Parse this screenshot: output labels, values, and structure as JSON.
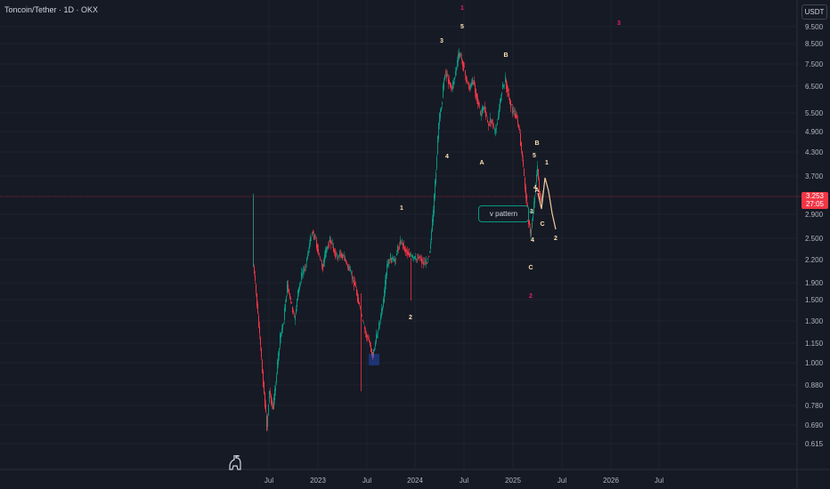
{
  "header": {
    "title": "Toncoin/Tether · 1D · OKX",
    "currency_button": "USDT"
  },
  "price_tag": {
    "price": "3.253",
    "countdown": "27:05"
  },
  "y_axis": {
    "labels": [
      "9.500",
      "8.500",
      "7.500",
      "6.500",
      "5.500",
      "4.900",
      "4.300",
      "3.700",
      "2.900",
      "2.500",
      "2.200",
      "1.900",
      "1.500",
      "1.300",
      "1.150",
      "1.000",
      "0.880",
      "0.780",
      "0.690",
      "0.615"
    ]
  },
  "x_axis": {
    "labels": [
      "Jul",
      "2023",
      "Jul",
      "2024",
      "Jul",
      "2025",
      "Jul",
      "2026",
      "Jul"
    ]
  },
  "annotations": {
    "waves": [
      "1",
      "2",
      "3",
      "4",
      "5",
      "A",
      "B",
      "C",
      "1",
      "2",
      "3",
      "4",
      "5",
      "A",
      "B",
      "C",
      "1",
      "2",
      "3",
      "4"
    ],
    "pattern_label": "v pattern"
  },
  "colors": {
    "bg": "#161a25",
    "up": "#089981",
    "down": "#f23645",
    "projection": "#f5c99b",
    "wave_label": "#ffe0b2",
    "wave_label_red": "#e91e63"
  },
  "icons": {
    "logo": "dinosaur-icon"
  }
}
